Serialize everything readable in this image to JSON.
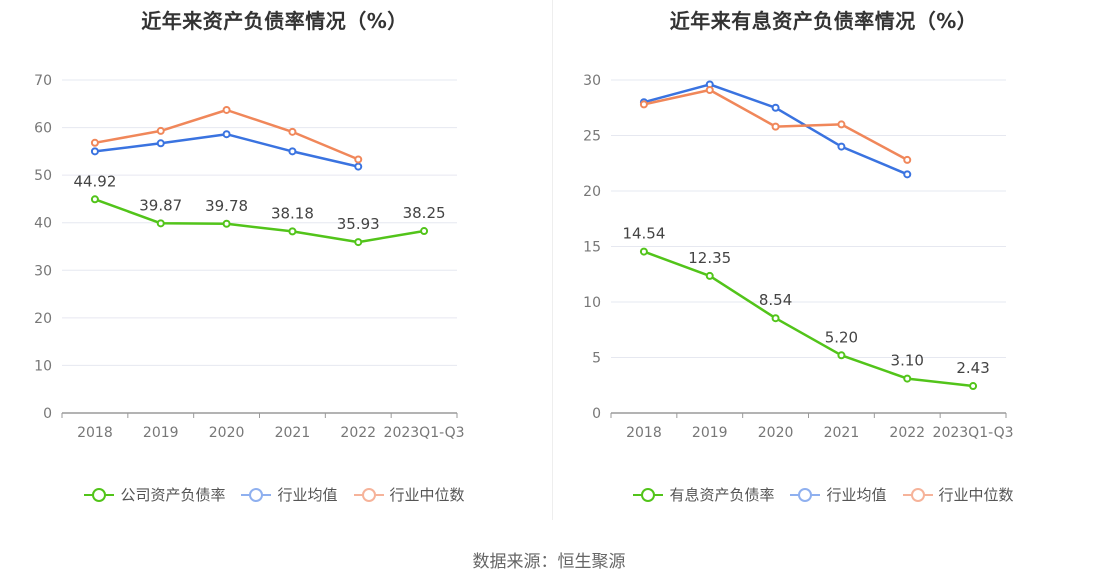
{
  "chart_data": [
    {
      "type": "line",
      "title": "近年来资产负债率情况（%）",
      "categories": [
        "2018",
        "2019",
        "2020",
        "2021",
        "2022",
        "2023Q1-Q3"
      ],
      "ylim": [
        0,
        70
      ],
      "yticks": [
        0,
        10,
        20,
        30,
        40,
        50,
        60,
        70
      ],
      "series": [
        {
          "name": "公司资产负债率",
          "color": "#52c41a",
          "values": [
            44.92,
            39.87,
            39.78,
            38.18,
            35.93,
            38.25
          ],
          "labels": [
            "44.92",
            "39.87",
            "39.78",
            "38.18",
            "35.93",
            "38.25"
          ]
        },
        {
          "name": "行业均值",
          "color": "#3a73e0",
          "values": [
            55.0,
            56.7,
            58.6,
            55.0,
            51.8,
            null
          ]
        },
        {
          "name": "行业中位数",
          "color": "#f0875a",
          "values": [
            56.8,
            59.3,
            63.7,
            59.1,
            53.3,
            null
          ]
        }
      ]
    },
    {
      "type": "line",
      "title": "近年来有息资产负债率情况（%）",
      "categories": [
        "2018",
        "2019",
        "2020",
        "2021",
        "2022",
        "2023Q1-Q3"
      ],
      "ylim": [
        0,
        30
      ],
      "yticks": [
        0,
        5,
        10,
        15,
        20,
        25,
        30
      ],
      "series": [
        {
          "name": "有息资产负债率",
          "color": "#52c41a",
          "values": [
            14.54,
            12.35,
            8.54,
            5.2,
            3.1,
            2.43
          ],
          "labels": [
            "14.54",
            "12.35",
            "8.54",
            "5.20",
            "3.10",
            "2.43"
          ]
        },
        {
          "name": "行业均值",
          "color": "#3a73e0",
          "values": [
            28.0,
            29.6,
            27.5,
            24.0,
            21.5,
            null
          ]
        },
        {
          "name": "行业中位数",
          "color": "#f0875a",
          "values": [
            27.8,
            29.1,
            25.8,
            26.0,
            22.8,
            null
          ]
        }
      ]
    }
  ],
  "source": "数据来源：恒生聚源",
  "legend_colors": {
    "line_light": [
      "#7fd45a",
      "#8fb0ef",
      "#f6b39a"
    ]
  }
}
